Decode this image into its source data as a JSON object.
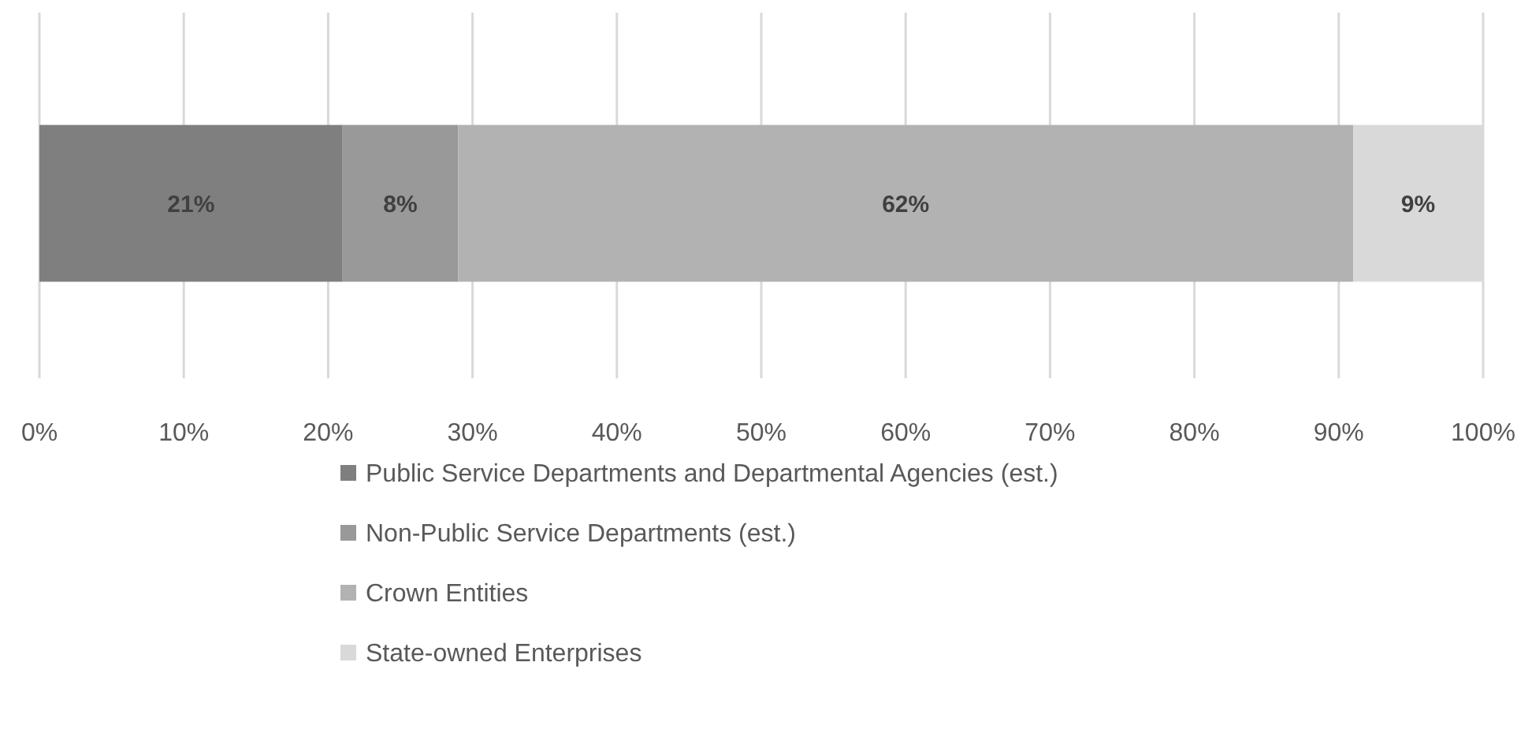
{
  "chart_data": {
    "type": "bar",
    "orientation": "horizontal",
    "stacked": true,
    "categories": [
      null
    ],
    "series": [
      {
        "name": "Public Service Departments and Departmental Agencies (est.)",
        "color": "#7f7f7f",
        "values": [
          21
        ],
        "value_labels": [
          "21%"
        ]
      },
      {
        "name": "Non-Public Service Departments (est.)",
        "color": "#999999",
        "values": [
          8
        ],
        "value_labels": [
          "8%"
        ]
      },
      {
        "name": "Crown Entities",
        "color": "#b2b2b2",
        "values": [
          62
        ],
        "value_labels": [
          "62%"
        ]
      },
      {
        "name": "State-owned Enterprises",
        "color": "#d9d9d9",
        "values": [
          9
        ],
        "value_labels": [
          "9%"
        ]
      }
    ],
    "xlim": [
      0,
      100
    ],
    "xticks": [
      {
        "value": 0,
        "label": "0%"
      },
      {
        "value": 10,
        "label": "10%"
      },
      {
        "value": 20,
        "label": "20%"
      },
      {
        "value": 30,
        "label": "30%"
      },
      {
        "value": 40,
        "label": "40%"
      },
      {
        "value": 50,
        "label": "50%"
      },
      {
        "value": 60,
        "label": "60%"
      },
      {
        "value": 70,
        "label": "70%"
      },
      {
        "value": 80,
        "label": "80%"
      },
      {
        "value": 90,
        "label": "90%"
      },
      {
        "value": 100,
        "label": "100%"
      }
    ],
    "grid": "x",
    "legend": "bottom"
  }
}
